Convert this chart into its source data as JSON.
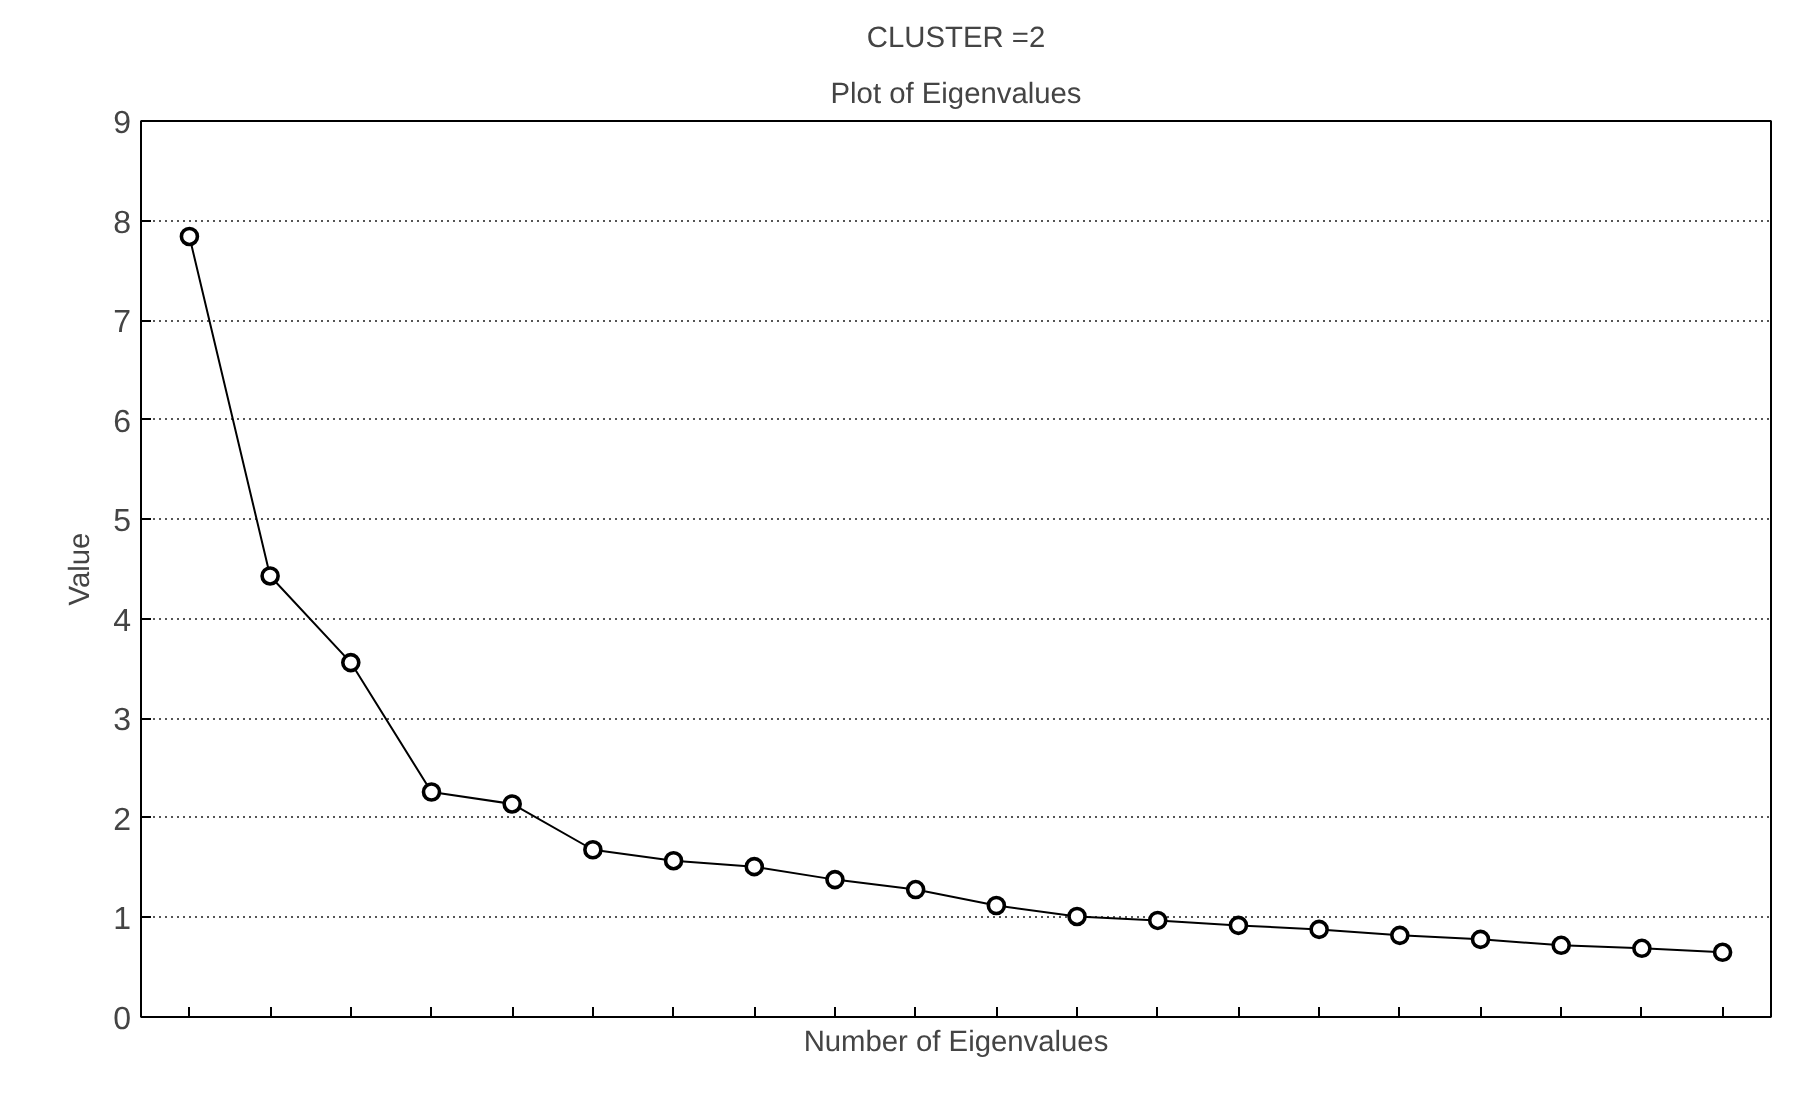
{
  "chart_data": {
    "type": "line",
    "title": "CLUSTER =2",
    "subtitle": "Plot of Eigenvalues",
    "xlabel": "Number of Eigenvalues",
    "ylabel": "Value",
    "categories": [
      null,
      null,
      null,
      null,
      null,
      null,
      null,
      null,
      null,
      null,
      null,
      null,
      null,
      null,
      null,
      null,
      null,
      null,
      null,
      null
    ],
    "series": [
      {
        "color": "#000000",
        "values": [
          7.84,
          4.43,
          3.56,
          2.26,
          2.14,
          1.68,
          1.57,
          1.51,
          1.38,
          1.28,
          1.12,
          1.01,
          0.97,
          0.92,
          0.88,
          0.82,
          0.78,
          0.72,
          0.69,
          0.65
        ]
      }
    ],
    "ylim": [
      0,
      9
    ],
    "yticks": [
      0,
      1,
      2,
      3,
      4,
      5,
      6,
      7,
      8,
      9
    ],
    "grid": "y",
    "marker": "circle",
    "line_style": "solid",
    "tick_labels": "y"
  }
}
